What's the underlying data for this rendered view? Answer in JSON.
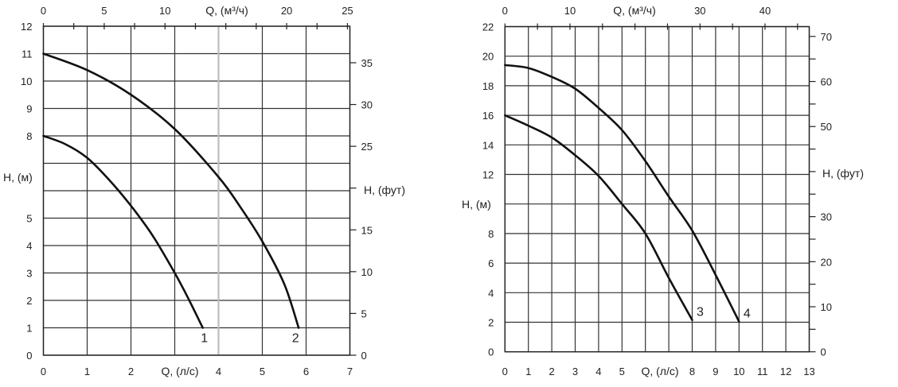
{
  "chart_data": [
    {
      "type": "line",
      "xlabel": "Q, (л/с)",
      "ylabel": "H, (м)",
      "x2label": "Q, (м³/ч)",
      "y2label": "H, (фут)",
      "xlim": [
        0,
        7
      ],
      "ylim": [
        0,
        12
      ],
      "grid": true,
      "highlight_x": 4,
      "x_ticks": [
        0,
        1,
        2,
        3,
        4,
        5,
        6,
        7
      ],
      "x_tick_labels": [
        0,
        1,
        2,
        4,
        5,
        6,
        7
      ],
      "y_ticks": [
        0,
        1,
        2,
        3,
        4,
        5,
        6,
        7,
        8,
        9,
        10,
        11,
        12
      ],
      "y_tick_labels": [
        0,
        1,
        2,
        3,
        4,
        5,
        8,
        9,
        10,
        11,
        12
      ],
      "x2_ticks": [
        0,
        2.5,
        5,
        7.5,
        10,
        12.5,
        15,
        17.5,
        20,
        22.5,
        25
      ],
      "x2_tick_labels": [
        0,
        5,
        10,
        20,
        25
      ],
      "y2_ticks": [
        0,
        5,
        10,
        15,
        20,
        25,
        30,
        35
      ],
      "y2_tick_labels": [
        0,
        5,
        10,
        15,
        25,
        30,
        35
      ],
      "series": [
        {
          "name": "1",
          "x": [
            0,
            0.5,
            1,
            1.5,
            2,
            2.5,
            3,
            3.3,
            3.64
          ],
          "y": [
            8,
            7.7,
            7.2,
            6.4,
            5.45,
            4.35,
            3.0,
            2.1,
            1.0
          ]
        },
        {
          "name": "2",
          "x": [
            0,
            1,
            2,
            3,
            4,
            4.5,
            5,
            5.5,
            5.83
          ],
          "y": [
            11,
            10.4,
            9.5,
            8.25,
            6.5,
            5.4,
            4.15,
            2.6,
            1.0
          ]
        }
      ]
    },
    {
      "type": "line",
      "xlabel": "Q, (л/с)",
      "ylabel": "H, (м)",
      "x2label": "Q, (м³/ч)",
      "y2label": "H, (фут)",
      "xlim": [
        0,
        13
      ],
      "ylim": [
        0,
        22
      ],
      "grid": true,
      "x_ticks": [
        0,
        1,
        2,
        3,
        4,
        5,
        6,
        7,
        8,
        9,
        10,
        11,
        12,
        13
      ],
      "x_tick_labels": [
        0,
        1,
        2,
        3,
        4,
        5,
        8,
        9,
        10,
        11,
        12,
        13
      ],
      "y_ticks": [
        0,
        2,
        4,
        6,
        8,
        10,
        12,
        14,
        16,
        18,
        20,
        22
      ],
      "y_tick_labels": [
        0,
        2,
        4,
        6,
        8,
        12,
        14,
        16,
        18,
        20,
        22
      ],
      "x2_ticks": [
        0,
        5,
        10,
        15,
        20,
        25,
        30,
        35,
        40,
        45
      ],
      "x2_tick_labels": [
        0,
        10,
        30,
        40
      ],
      "y2_ticks": [
        0,
        5,
        10,
        15,
        20,
        25,
        30,
        35,
        40,
        45,
        50,
        55,
        60,
        65,
        70
      ],
      "y2_tick_labels": [
        0,
        10,
        20,
        30,
        50,
        60,
        70
      ],
      "series": [
        {
          "name": "3",
          "x": [
            0,
            1,
            2,
            3,
            4,
            5,
            6,
            7,
            8
          ],
          "y": [
            16,
            15.3,
            14.5,
            13.3,
            11.9,
            10.0,
            8.0,
            5.0,
            2.15
          ]
        },
        {
          "name": "4",
          "x": [
            0,
            1,
            2,
            3,
            4,
            5,
            6,
            7,
            8,
            9,
            10
          ],
          "y": [
            19.4,
            19.2,
            18.6,
            17.8,
            16.5,
            15.0,
            12.9,
            10.5,
            8.2,
            5.2,
            2.05
          ]
        }
      ]
    }
  ]
}
